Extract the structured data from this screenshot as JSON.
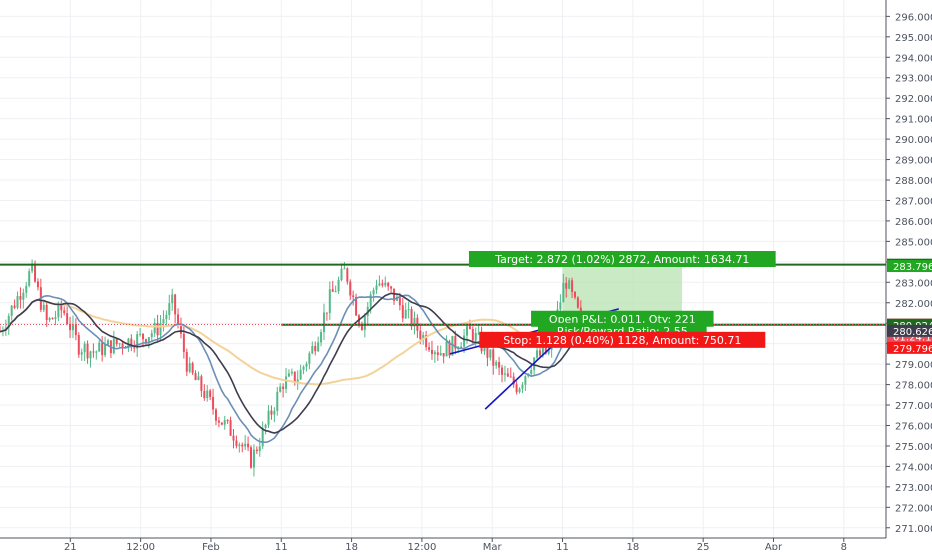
{
  "chart_data": {
    "type": "candlestick",
    "colors": {
      "up": "#53b987",
      "down": "#eb4d5c",
      "grid": "#eef0f3",
      "axis_text": "#4c525e",
      "level_line": "#1e6b1e",
      "target_fill": "#b7e3b0",
      "stop_fill": "#f6b9b9",
      "target_label": "#22a722",
      "stop_label": "#f21818",
      "trend_line": "#1414c8",
      "ma_fast": "#6b8fb5",
      "ma_mid": "#3d3d4d",
      "ma_slow": "#f2d39a"
    },
    "y_axis": {
      "ylim": [
        270.5,
        296.8
      ],
      "ticks": [
        "271.000",
        "272.000",
        "273.000",
        "274.000",
        "275.000",
        "276.000",
        "277.000",
        "278.000",
        "279.000",
        "280.000",
        "281.000",
        "282.000",
        "283.000",
        "284.000",
        "285.000",
        "286.000",
        "287.000",
        "288.000",
        "289.000",
        "290.000",
        "291.000",
        "292.000",
        "293.000",
        "294.000",
        "295.000",
        "296.000"
      ]
    },
    "x_axis": {
      "ticks": [
        {
          "label": "21",
          "day": 5
        },
        {
          "label": "12:00",
          "day": 10
        },
        {
          "label": "Feb",
          "day": 15
        },
        {
          "label": "11",
          "day": 20
        },
        {
          "label": "18",
          "day": 25
        },
        {
          "label": "12:00",
          "day": 30
        },
        {
          "label": "Mar",
          "day": 35
        },
        {
          "label": "11",
          "day": 40
        },
        {
          "label": "18",
          "day": 45
        },
        {
          "label": "25",
          "day": 50
        },
        {
          "label": "Apr",
          "day": 55
        },
        {
          "label": "8",
          "day": 60
        }
      ],
      "xlim": [
        0,
        63
      ]
    },
    "closes": [
      280.6,
      282.1,
      283.6,
      281.0,
      281.7,
      279.9,
      279.6,
      279.9,
      280.1,
      280.3,
      280.7,
      282.0,
      278.7,
      277.6,
      276.3,
      275.5,
      274.3,
      276.1,
      278.1,
      278.4,
      279.9,
      282.2,
      283.6,
      280.9,
      283.1,
      282.4,
      281.3,
      280.3,
      279.6,
      280.0,
      280.6,
      279.6,
      278.4,
      277.9,
      279.3,
      279.6,
      283.2,
      281.1
    ],
    "price_labels": [
      {
        "text": "283.861",
        "value": 283.861,
        "bg": "#1e6b1e"
      },
      {
        "text": "283.796",
        "value": 283.796,
        "bg": "#22a722"
      },
      {
        "text": "280.935",
        "value": 280.935,
        "bg": "#eb4d5c"
      },
      {
        "text": "01:24:17",
        "value": 280.935,
        "bg": "#eb4d5c",
        "offset": 1
      },
      {
        "text": "280.924",
        "value": 280.924,
        "bg": "#1e6b1e"
      },
      {
        "text": "280.626",
        "value": 280.626,
        "bg": "#3d3d4d"
      },
      {
        "text": "279.796",
        "value": 279.796,
        "bg": "#f21818"
      }
    ],
    "horizontal_levels": [
      {
        "value": 283.861,
        "x_from": 0
      },
      {
        "value": 280.924,
        "x_from": 20
      }
    ],
    "position": {
      "x_from": 40,
      "x_to": 48.5,
      "entry": 280.924,
      "target": 283.796,
      "stop": 279.796,
      "target_text": "Target: 2.872 (1.02%) 2872, Amount: 1634.71",
      "pnl_text": "Open P&L: 0.011, Qty: 221",
      "rr_text": "Risk/Reward Ratio: 2.55",
      "stop_text": "Stop: 1.128 (0.40%) 1128, Amount: 750.71"
    },
    "trend_lines": [
      {
        "x1": 32,
        "y1": 279.5,
        "x2": 44,
        "y2": 281.7
      },
      {
        "x1": 34.5,
        "y1": 276.8,
        "x2": 41,
        "y2": 281.0
      }
    ]
  }
}
